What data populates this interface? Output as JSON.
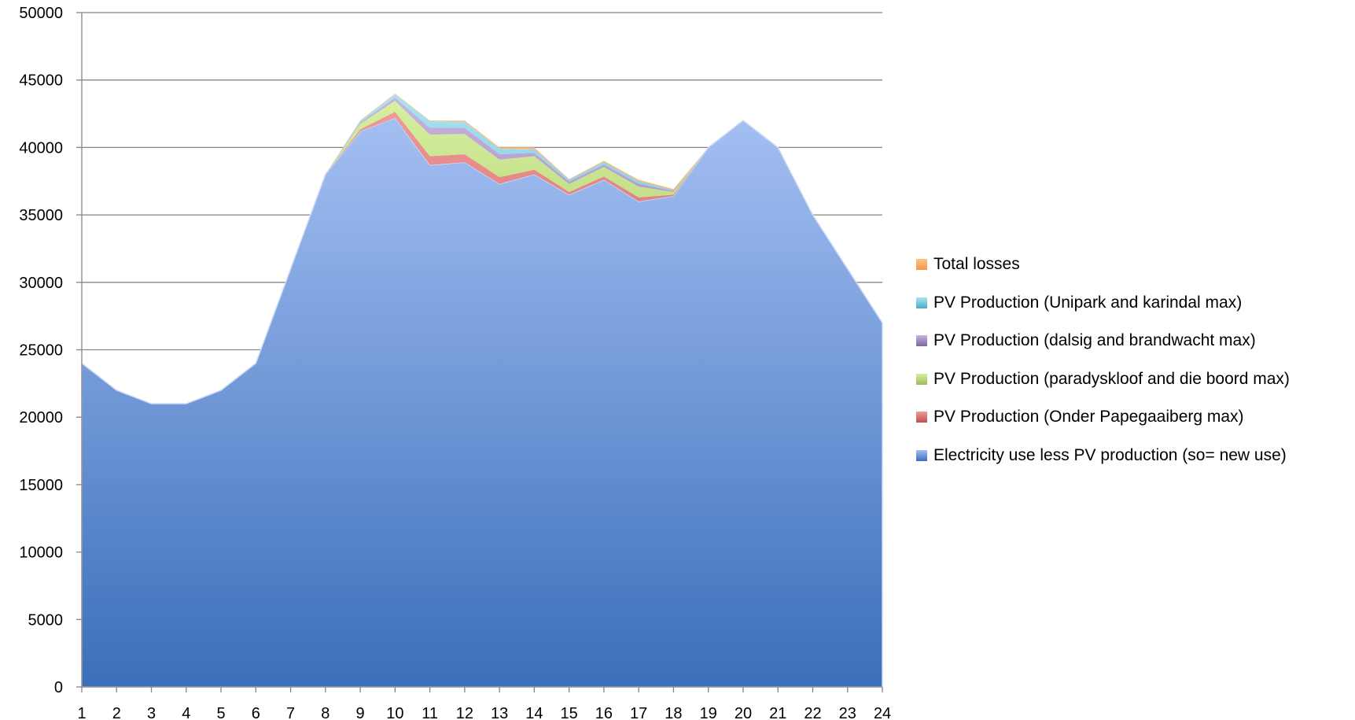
{
  "chart_data": {
    "type": "area",
    "stacked": true,
    "x": [
      1,
      2,
      3,
      4,
      5,
      6,
      7,
      8,
      9,
      10,
      11,
      12,
      13,
      14,
      15,
      16,
      17,
      18,
      19,
      20,
      21,
      22,
      23,
      24
    ],
    "ylim": [
      0,
      50000
    ],
    "yticks": [
      0,
      5000,
      10000,
      15000,
      20000,
      25000,
      30000,
      35000,
      40000,
      45000,
      50000
    ],
    "grid": true,
    "legend_position": "right",
    "series": [
      {
        "name": "Electricity use less PV production (so= new use)",
        "color_top": "#a4bff2",
        "color_bottom": "#3a6fba",
        "swatch": "#4a7cc8",
        "values": [
          24000,
          22000,
          21000,
          21000,
          22000,
          24000,
          31000,
          38000,
          41200,
          42200,
          38700,
          38900,
          37300,
          38000,
          36500,
          37600,
          36000,
          36400,
          40000,
          42000,
          40000,
          35000,
          31000,
          27000
        ]
      },
      {
        "name": "PV Production (Onder Papegaaiberg max)",
        "color_top": "#f09a9a",
        "color_bottom": "#c0504d",
        "swatch": "#c0504d",
        "values": [
          0,
          0,
          0,
          0,
          0,
          0,
          0,
          0,
          150,
          450,
          650,
          600,
          500,
          350,
          200,
          250,
          300,
          100,
          0,
          0,
          0,
          0,
          0,
          0
        ]
      },
      {
        "name": "PV Production (paradyskloof and die boord max)",
        "color_top": "#d7f0a0",
        "color_bottom": "#9bbb59",
        "swatch": "#9bbb59",
        "values": [
          0,
          0,
          0,
          0,
          0,
          0,
          0,
          0,
          400,
          800,
          1600,
          1500,
          1300,
          1000,
          600,
          700,
          800,
          200,
          0,
          0,
          0,
          0,
          0,
          0
        ]
      },
      {
        "name": "PV Production (dalsig and brandwacht max)",
        "color_top": "#c8b4e0",
        "color_bottom": "#8064a2",
        "swatch": "#8064a2",
        "values": [
          0,
          0,
          0,
          0,
          0,
          0,
          0,
          0,
          100,
          250,
          500,
          450,
          400,
          250,
          150,
          180,
          200,
          60,
          0,
          0,
          0,
          0,
          0,
          0
        ]
      },
      {
        "name": "PV Production (Unipark and karindal max)",
        "color_top": "#a8e4f2",
        "color_bottom": "#4bacc6",
        "swatch": "#4bacc6",
        "values": [
          0,
          0,
          0,
          0,
          0,
          0,
          0,
          0,
          100,
          250,
          500,
          450,
          400,
          250,
          150,
          180,
          200,
          60,
          0,
          0,
          0,
          0,
          0,
          0
        ]
      },
      {
        "name": "Total losses",
        "color_top": "#fbc48a",
        "color_bottom": "#f79646",
        "swatch": "#f79646",
        "values": [
          0,
          0,
          0,
          0,
          0,
          0,
          0,
          0,
          50,
          50,
          50,
          100,
          100,
          150,
          50,
          100,
          100,
          100,
          0,
          0,
          0,
          0,
          0,
          0
        ]
      }
    ]
  }
}
